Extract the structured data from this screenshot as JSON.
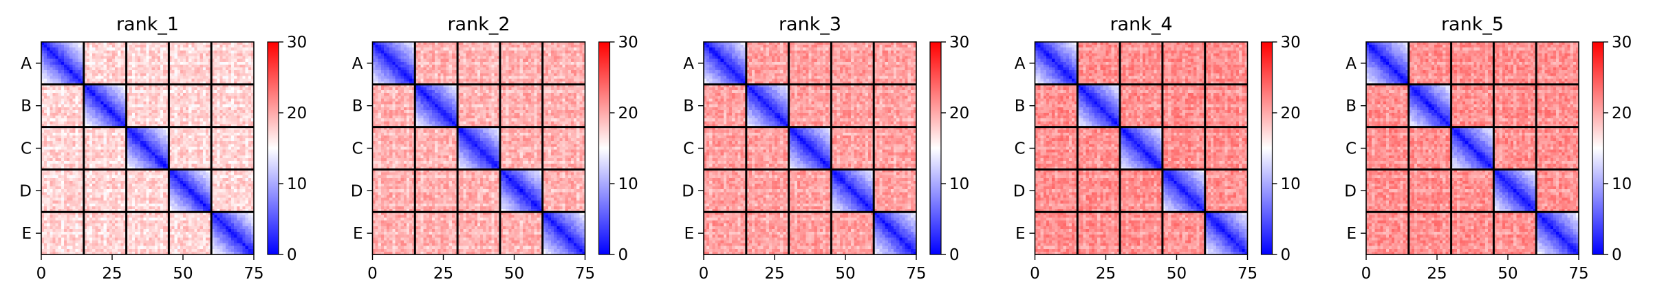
{
  "chart_data": [
    {
      "type": "heatmap",
      "title": "rank_1",
      "variant": 1,
      "n_cells": 75,
      "block_size": 15,
      "row_labels": [
        "A",
        "B",
        "C",
        "D",
        "E"
      ],
      "x_ticks": [
        0,
        25,
        50,
        75
      ],
      "xlim": [
        0,
        75
      ],
      "colorbar": {
        "min": 0,
        "max": 30,
        "ticks": [
          0,
          10,
          20,
          30
        ],
        "colors": [
          "#0000ff",
          "#ffffff",
          "#ff0000"
        ]
      },
      "within_block_diagonal_value": 1,
      "within_block_far_value": 15,
      "between_block_value": 18
    },
    {
      "type": "heatmap",
      "title": "rank_2",
      "variant": 2,
      "n_cells": 75,
      "block_size": 15,
      "row_labels": [
        "A",
        "B",
        "C",
        "D",
        "E"
      ],
      "x_ticks": [
        0,
        25,
        50,
        75
      ],
      "xlim": [
        0,
        75
      ],
      "colorbar": {
        "min": 0,
        "max": 30,
        "ticks": [
          0,
          10,
          20,
          30
        ],
        "colors": [
          "#0000ff",
          "#ffffff",
          "#ff0000"
        ]
      },
      "within_block_diagonal_value": 1,
      "within_block_far_value": 14,
      "between_block_value": 20
    },
    {
      "type": "heatmap",
      "title": "rank_3",
      "variant": 3,
      "n_cells": 75,
      "block_size": 15,
      "row_labels": [
        "A",
        "B",
        "C",
        "D",
        "E"
      ],
      "x_ticks": [
        0,
        25,
        50,
        75
      ],
      "xlim": [
        0,
        75
      ],
      "colorbar": {
        "min": 0,
        "max": 30,
        "ticks": [
          0,
          10,
          20,
          30
        ],
        "colors": [
          "#0000ff",
          "#ffffff",
          "#ff0000"
        ]
      },
      "within_block_diagonal_value": 1,
      "within_block_far_value": 14,
      "between_block_value": 21
    },
    {
      "type": "heatmap",
      "title": "rank_4",
      "variant": 4,
      "n_cells": 75,
      "block_size": 15,
      "row_labels": [
        "A",
        "B",
        "C",
        "D",
        "E"
      ],
      "x_ticks": [
        0,
        25,
        50,
        75
      ],
      "xlim": [
        0,
        75
      ],
      "colorbar": {
        "min": 0,
        "max": 30,
        "ticks": [
          0,
          10,
          20,
          30
        ],
        "colors": [
          "#0000ff",
          "#ffffff",
          "#ff0000"
        ]
      },
      "within_block_diagonal_value": 1,
      "within_block_far_value": 14,
      "between_block_value": 22
    },
    {
      "type": "heatmap",
      "title": "rank_5",
      "variant": 5,
      "n_cells": 75,
      "block_size": 15,
      "row_labels": [
        "A",
        "B",
        "C",
        "D",
        "E"
      ],
      "x_ticks": [
        0,
        25,
        50,
        75
      ],
      "xlim": [
        0,
        75
      ],
      "colorbar": {
        "min": 0,
        "max": 30,
        "ticks": [
          0,
          10,
          20,
          30
        ],
        "colors": [
          "#0000ff",
          "#ffffff",
          "#ff0000"
        ]
      },
      "within_block_diagonal_value": 1,
      "within_block_far_value": 14,
      "between_block_value": 22
    }
  ]
}
